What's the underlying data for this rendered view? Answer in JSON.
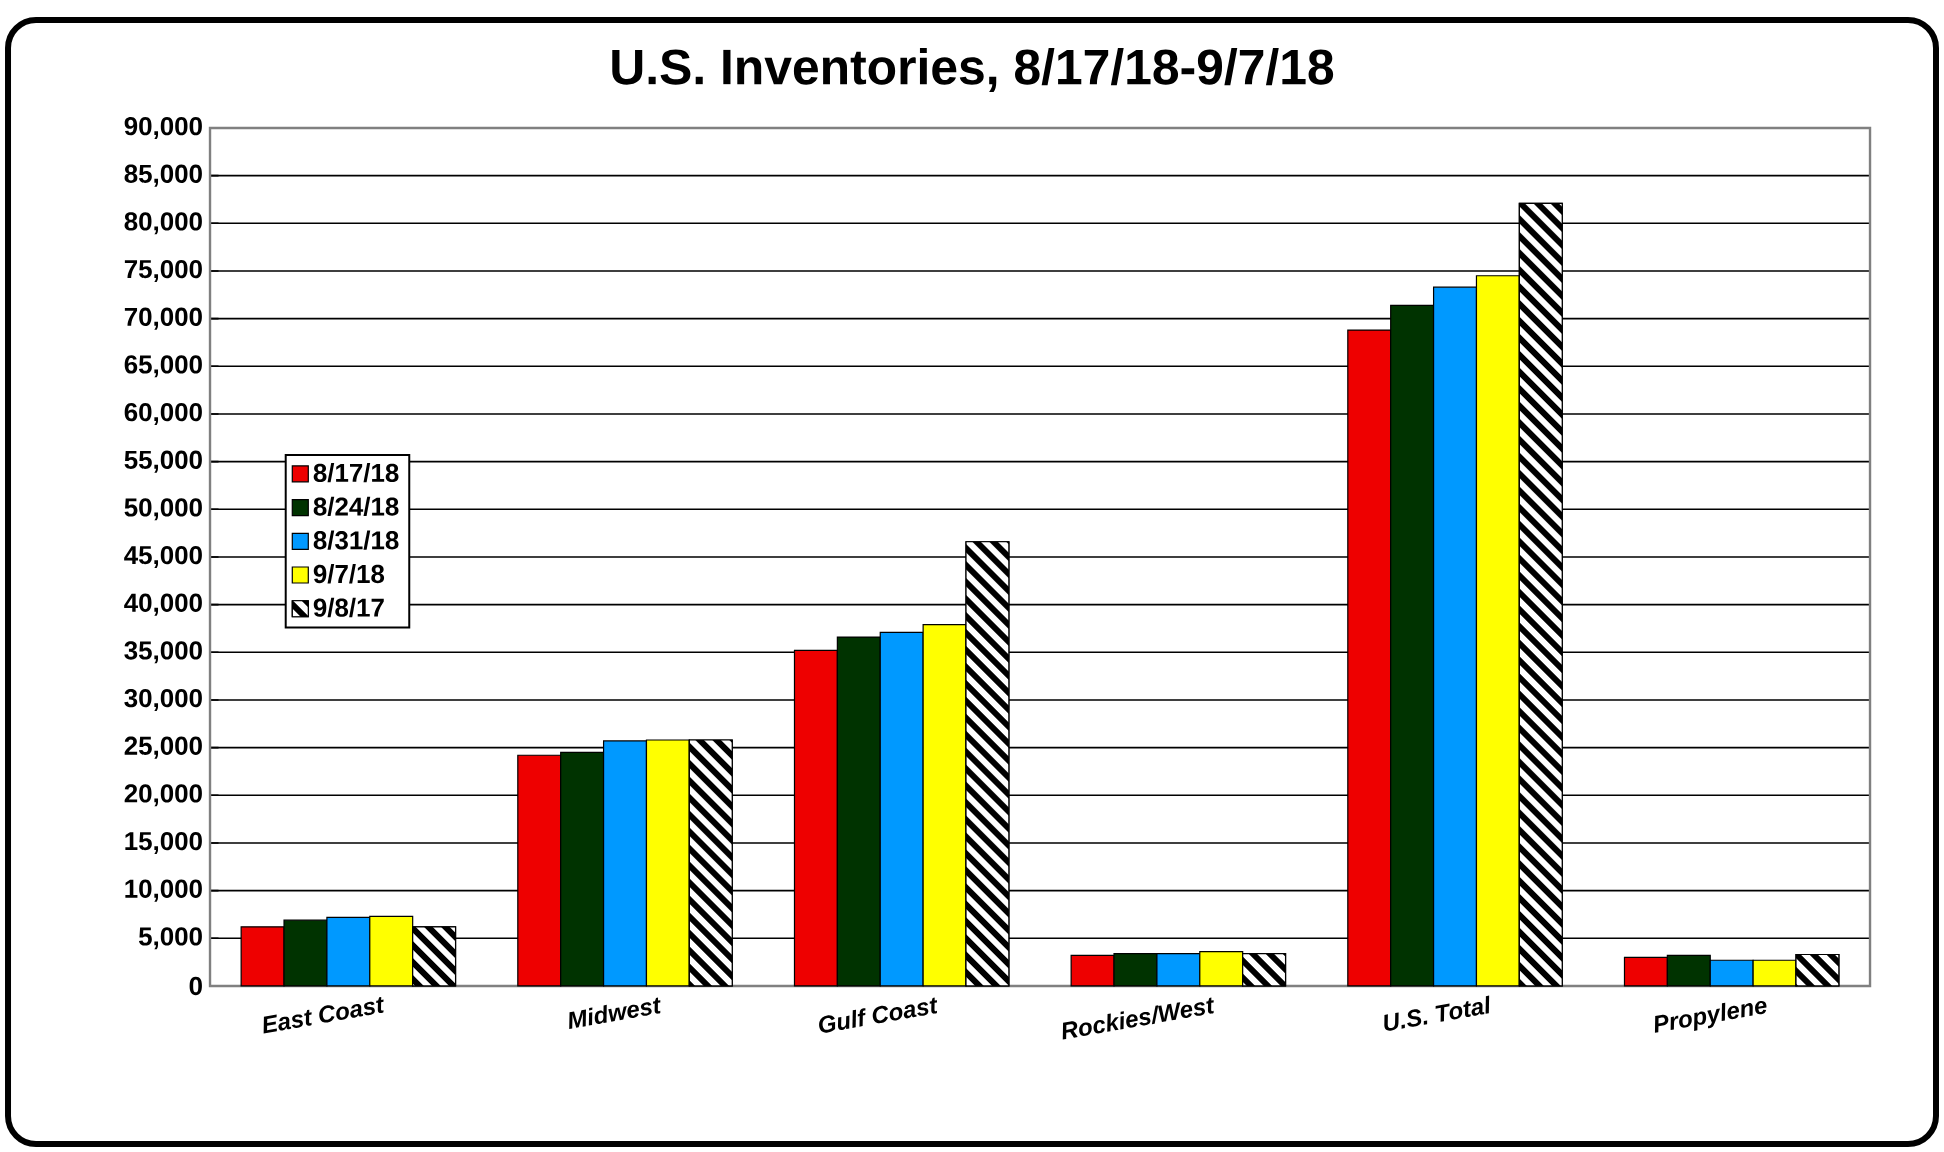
{
  "chart_data": {
    "type": "bar",
    "title": "U.S. Inventories, 8/17/18-9/7/18",
    "categories": [
      "East Coast",
      "Midwest",
      "Gulf Coast",
      "Rockies/West",
      "U.S. Total",
      "Propylene"
    ],
    "series": [
      {
        "name": "8/17/18",
        "color": "#ee0000",
        "values": [
          6200,
          24200,
          35200,
          3200,
          68800,
          3000
        ]
      },
      {
        "name": "8/24/18",
        "color": "#003300",
        "values": [
          6900,
          24500,
          36600,
          3400,
          71400,
          3200
        ]
      },
      {
        "name": "8/31/18",
        "color": "#0099ff",
        "values": [
          7200,
          25700,
          37100,
          3400,
          73300,
          2700
        ]
      },
      {
        "name": "9/7/18",
        "color": "#ffff00",
        "values": [
          7300,
          25800,
          37900,
          3600,
          74500,
          2700
        ]
      },
      {
        "name": "9/8/17",
        "color": "#000000",
        "values": [
          6200,
          25800,
          46600,
          3400,
          82100,
          3300
        ]
      }
    ],
    "ylim": [
      0,
      90000
    ],
    "yticks": [
      0,
      {
        "value": 5000,
        "label": "5,000"
      },
      {
        "value": 10000,
        "label": "10,000"
      },
      {
        "value": 15000,
        "label": "15,000"
      },
      {
        "value": 20000,
        "label": "20,000"
      },
      {
        "value": 25000,
        "label": "25,000"
      },
      {
        "value": 30000,
        "label": "30,000"
      },
      {
        "value": 35000,
        "label": "35,000"
      },
      {
        "value": 40000,
        "label": "40,000"
      },
      {
        "value": 45000,
        "label": "45,000"
      },
      {
        "value": 50000,
        "label": "50,000"
      },
      {
        "value": 55000,
        "label": "55,000"
      },
      {
        "value": 60000,
        "label": "60,000"
      },
      {
        "value": 65000,
        "label": "65,000"
      },
      {
        "value": 70000,
        "label": "70,000"
      },
      {
        "value": 75000,
        "label": "75,000"
      },
      {
        "value": 80000,
        "label": "80,000"
      },
      {
        "value": 85000,
        "label": "85,000"
      },
      {
        "value": 90000,
        "label": "90,000"
      }
    ],
    "grid": "y",
    "legend": "left"
  }
}
